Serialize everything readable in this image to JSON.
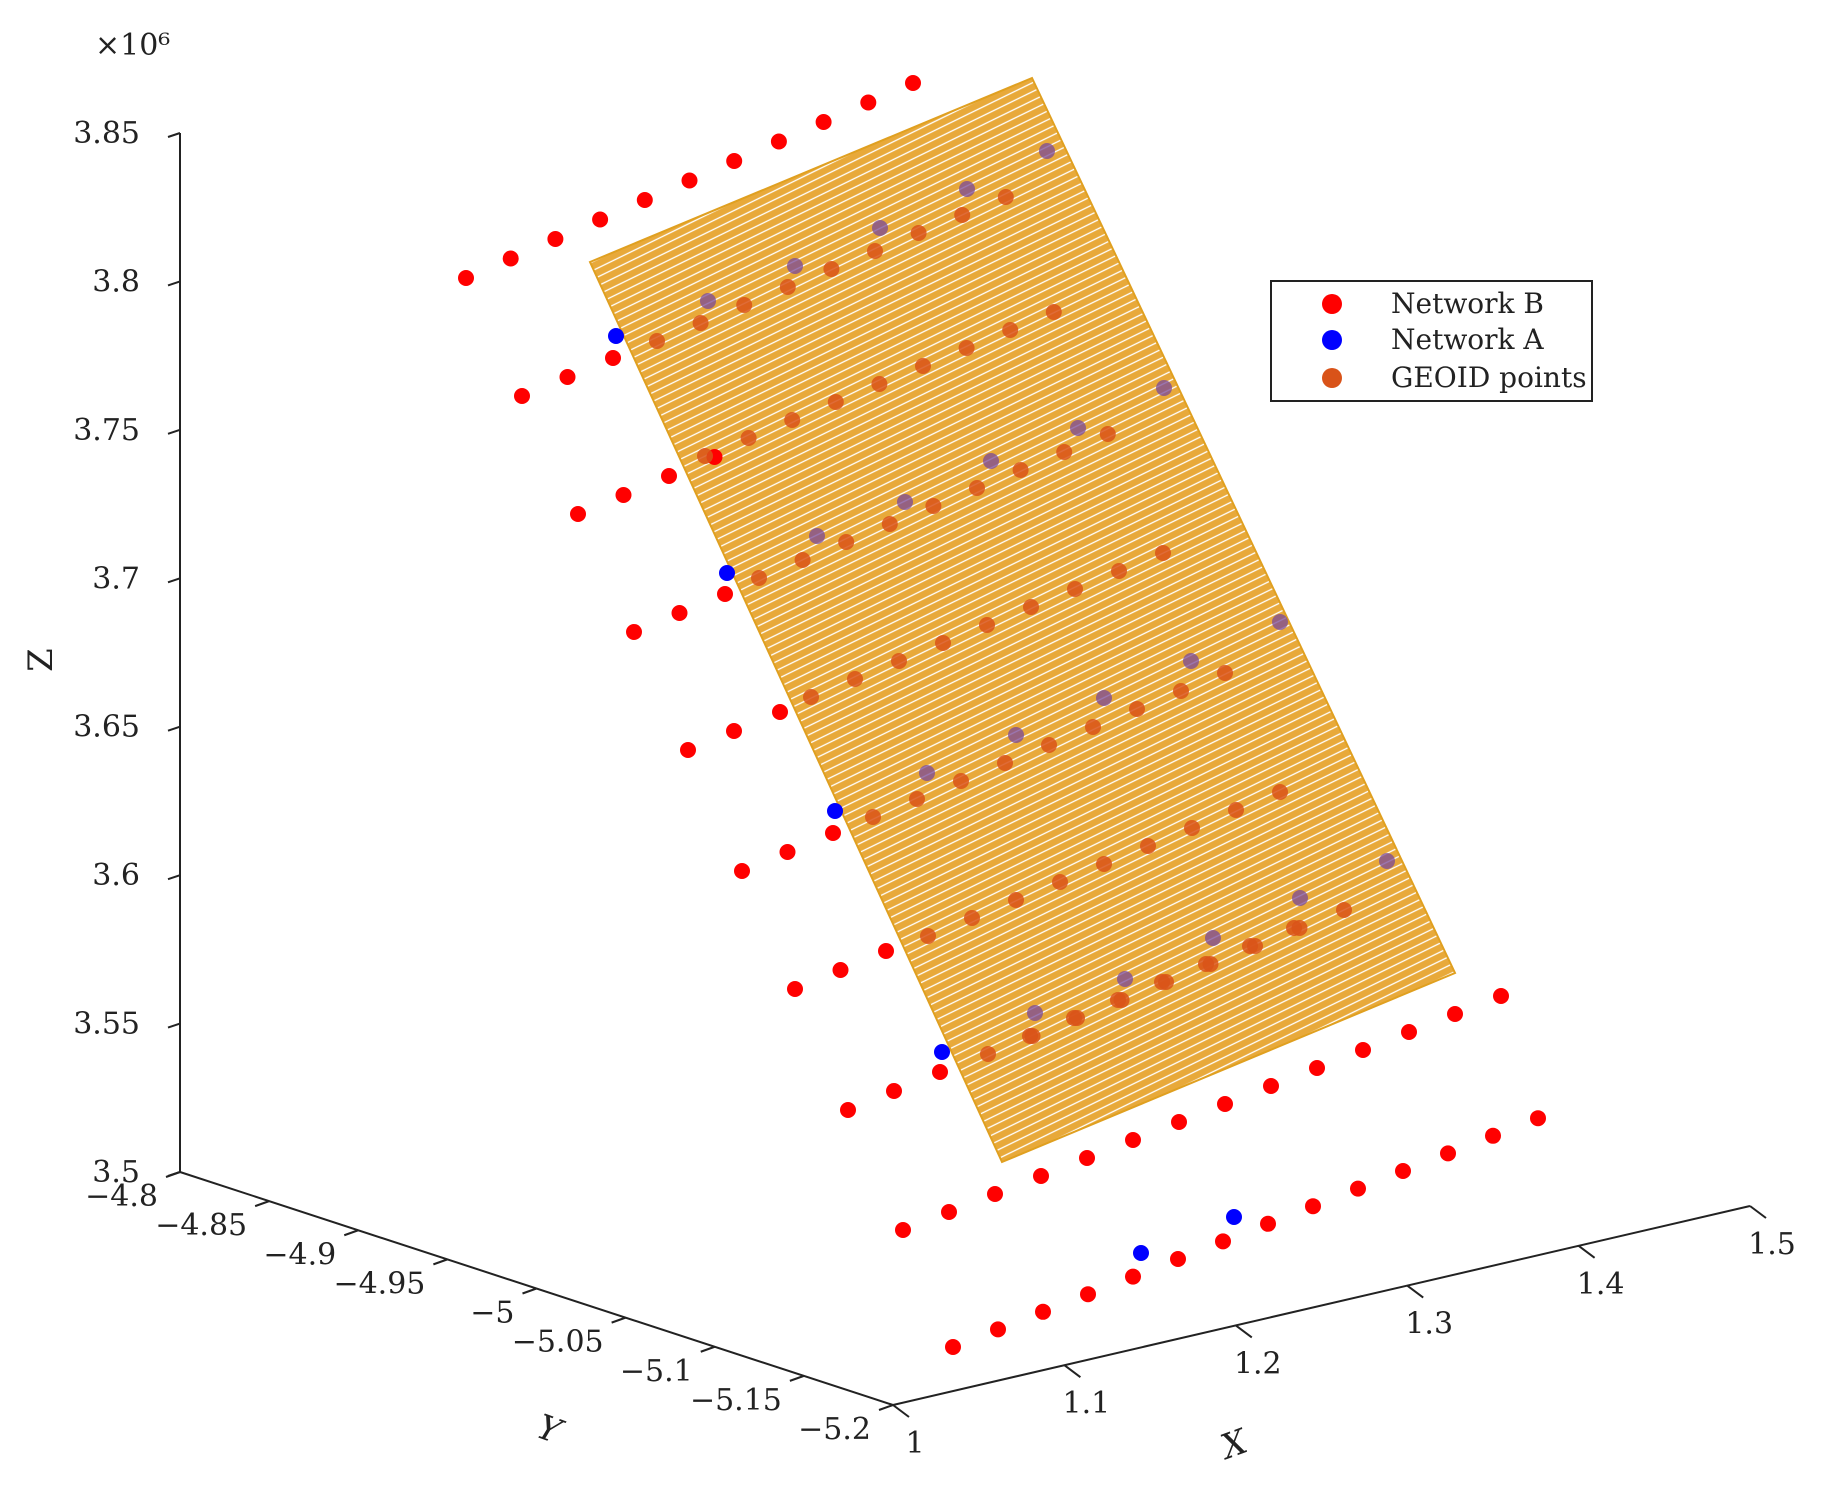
{
  "chart_data": {
    "type": "scatter3d",
    "title": "",
    "xlabel": "X",
    "ylabel": "Y",
    "zlabel": "Z",
    "x_ticks": [
      "1",
      "1.1",
      "1.2",
      "1.3",
      "1.4",
      "1.5"
    ],
    "y_ticks": [
      "−4.8",
      "−4.85",
      "−4.9",
      "−4.95",
      "−5",
      "−5.05",
      "−5.1",
      "−5.15",
      "−5.2"
    ],
    "z_ticks": [
      "3.5",
      "3.55",
      "3.6",
      "3.65",
      "3.7",
      "3.75",
      "3.8",
      "3.85"
    ],
    "z_exponent": "×10⁶",
    "xlim": [
      1.0,
      1.5
    ],
    "ylim": [
      -5.2,
      -4.8
    ],
    "zlim": [
      3.5,
      3.85
    ],
    "legend_position": "top-right",
    "colors": {
      "network_b": "#ff0000",
      "network_a": "#0000ff",
      "geoid": "#e0a020",
      "geoid_point": "#d95319",
      "surface": "#e8a93a"
    },
    "series": [
      {
        "name": "Network B",
        "marker": "circle",
        "color": "#ff0000"
      },
      {
        "name": "Network A",
        "marker": "circle",
        "color": "#0000ff"
      },
      {
        "name": "GEOID points",
        "marker": "circle",
        "color": "#d95319"
      }
    ]
  }
}
